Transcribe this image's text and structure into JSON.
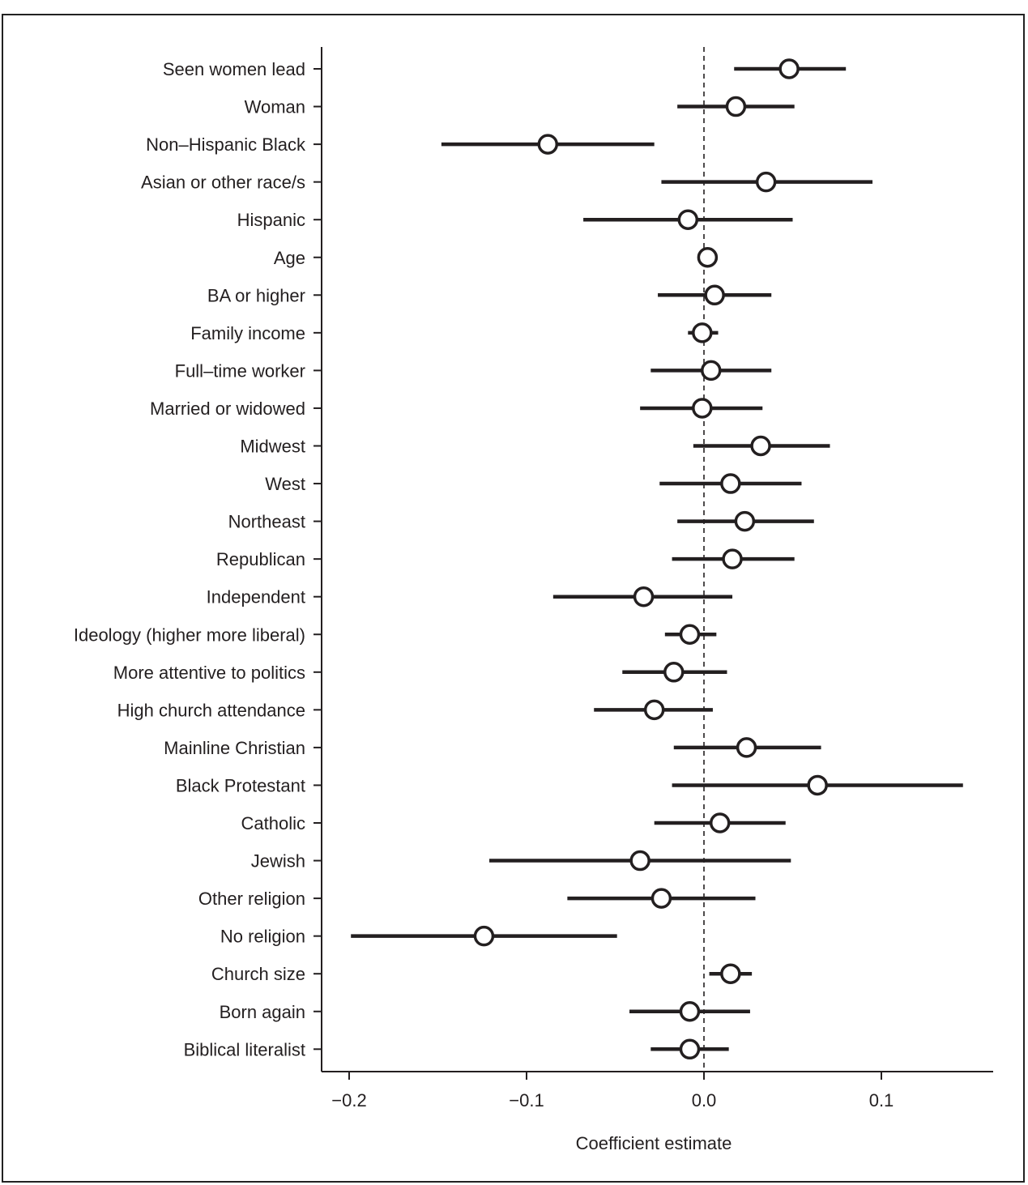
{
  "chart_data": {
    "type": "scatter",
    "subtype": "coefficient-plot",
    "xlabel": "Coefficient estimate",
    "xlim": [
      -0.215,
      0.163
    ],
    "x_ticks": [
      -0.2,
      -0.1,
      0.0,
      0.1
    ],
    "x_tick_labels": [
      "−0.2",
      "−0.1",
      "0.0",
      "0.1"
    ],
    "reference_line": 0.0,
    "grid": false,
    "marker_fill": "#ffffff",
    "line_color": "#231f20",
    "rows": [
      {
        "label": "Seen women lead",
        "estimate": 0.048,
        "ci": [
          0.017,
          0.08
        ]
      },
      {
        "label": "Woman",
        "estimate": 0.018,
        "ci": [
          -0.015,
          0.051
        ]
      },
      {
        "label": "Non–Hispanic Black",
        "estimate": -0.088,
        "ci": [
          -0.148,
          -0.028
        ]
      },
      {
        "label": "Asian or other race/s",
        "estimate": 0.035,
        "ci": [
          -0.024,
          0.095
        ]
      },
      {
        "label": "Hispanic",
        "estimate": -0.009,
        "ci": [
          -0.068,
          0.05
        ]
      },
      {
        "label": "Age",
        "estimate": 0.002,
        "ci": [
          0.0,
          0.004
        ]
      },
      {
        "label": "BA or higher",
        "estimate": 0.006,
        "ci": [
          -0.026,
          0.038
        ]
      },
      {
        "label": "Family income",
        "estimate": -0.001,
        "ci": [
          -0.009,
          0.008
        ]
      },
      {
        "label": "Full–time worker",
        "estimate": 0.004,
        "ci": [
          -0.03,
          0.038
        ]
      },
      {
        "label": "Married or widowed",
        "estimate": -0.001,
        "ci": [
          -0.036,
          0.033
        ]
      },
      {
        "label": "Midwest",
        "estimate": 0.032,
        "ci": [
          -0.006,
          0.071
        ]
      },
      {
        "label": "West",
        "estimate": 0.015,
        "ci": [
          -0.025,
          0.055
        ]
      },
      {
        "label": "Northeast",
        "estimate": 0.023,
        "ci": [
          -0.015,
          0.062
        ]
      },
      {
        "label": "Republican",
        "estimate": 0.016,
        "ci": [
          -0.018,
          0.051
        ]
      },
      {
        "label": "Independent",
        "estimate": -0.034,
        "ci": [
          -0.085,
          0.016
        ]
      },
      {
        "label": "Ideology (higher more liberal)",
        "estimate": -0.008,
        "ci": [
          -0.022,
          0.007
        ]
      },
      {
        "label": "More attentive to politics",
        "estimate": -0.017,
        "ci": [
          -0.046,
          0.013
        ]
      },
      {
        "label": "High church attendance",
        "estimate": -0.028,
        "ci": [
          -0.062,
          0.005
        ]
      },
      {
        "label": "Mainline Christian",
        "estimate": 0.024,
        "ci": [
          -0.017,
          0.066
        ]
      },
      {
        "label": "Black Protestant",
        "estimate": 0.064,
        "ci": [
          -0.018,
          0.146
        ]
      },
      {
        "label": "Catholic",
        "estimate": 0.009,
        "ci": [
          -0.028,
          0.046
        ]
      },
      {
        "label": "Jewish",
        "estimate": -0.036,
        "ci": [
          -0.121,
          0.049
        ]
      },
      {
        "label": "Other religion",
        "estimate": -0.024,
        "ci": [
          -0.077,
          0.029
        ]
      },
      {
        "label": "No religion",
        "estimate": -0.124,
        "ci": [
          -0.199,
          -0.049
        ]
      },
      {
        "label": "Church size",
        "estimate": 0.015,
        "ci": [
          0.003,
          0.027
        ]
      },
      {
        "label": "Born again",
        "estimate": -0.008,
        "ci": [
          -0.042,
          0.026
        ]
      },
      {
        "label": "Biblical literalist",
        "estimate": -0.008,
        "ci": [
          -0.03,
          0.014
        ]
      }
    ]
  }
}
